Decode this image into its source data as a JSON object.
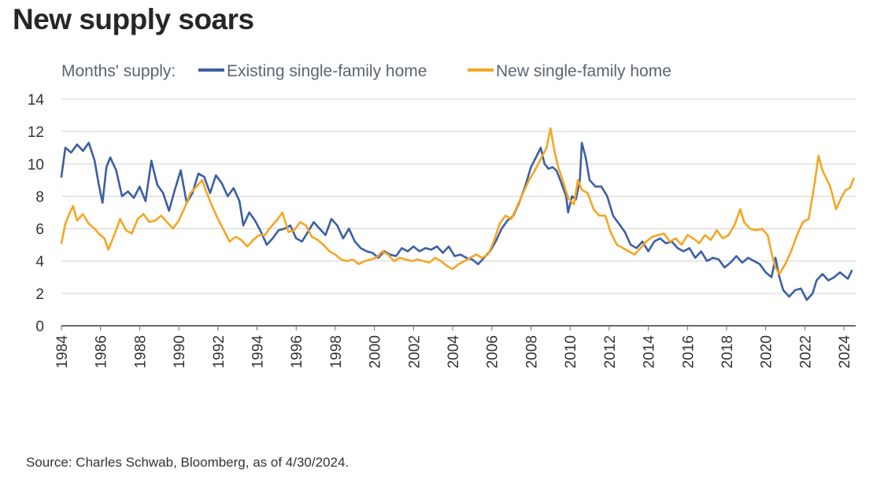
{
  "title": "New supply soars",
  "source": "Source: Charles Schwab, Bloomberg, as of 4/30/2024.",
  "colors": {
    "existing": "#3c5fa3",
    "new": "#f5a623",
    "grid": "#d0d0d0",
    "axis": "#6a6a6a"
  },
  "chart_data": {
    "type": "line",
    "title": "New supply soars",
    "legend_prefix": "Months' supply:",
    "legend_position": "top-left",
    "grid": true,
    "ylim": [
      0,
      14
    ],
    "yticks": [
      "0",
      "2",
      "4",
      "6",
      "8",
      "10",
      "12",
      "14"
    ],
    "xlim": [
      1984,
      2024.6
    ],
    "xticks": [
      "1984",
      "1986",
      "1988",
      "1990",
      "1992",
      "1994",
      "1996",
      "1998",
      "2000",
      "2002",
      "2004",
      "2006",
      "2008",
      "2010",
      "2012",
      "2014",
      "2016",
      "2018",
      "2020",
      "2022",
      "2024"
    ],
    "series": [
      {
        "name": "Existing single-family home",
        "color": "#3c5fa3",
        "points": [
          [
            1984,
            9.2
          ],
          [
            1984.2,
            11.0
          ],
          [
            1984.5,
            10.7
          ],
          [
            1984.8,
            11.2
          ],
          [
            1985.1,
            10.8
          ],
          [
            1985.4,
            11.3
          ],
          [
            1985.7,
            10.2
          ],
          [
            1985.9,
            8.8
          ],
          [
            1986.1,
            7.6
          ],
          [
            1986.3,
            9.8
          ],
          [
            1986.5,
            10.4
          ],
          [
            1986.8,
            9.6
          ],
          [
            1987.1,
            8.0
          ],
          [
            1987.4,
            8.3
          ],
          [
            1987.7,
            7.9
          ],
          [
            1988.0,
            8.6
          ],
          [
            1988.3,
            7.7
          ],
          [
            1988.6,
            10.2
          ],
          [
            1988.9,
            8.7
          ],
          [
            1989.2,
            8.2
          ],
          [
            1989.5,
            7.1
          ],
          [
            1989.8,
            8.4
          ],
          [
            1990.1,
            9.6
          ],
          [
            1990.4,
            7.6
          ],
          [
            1990.7,
            8.2
          ],
          [
            1991.0,
            9.4
          ],
          [
            1991.3,
            9.2
          ],
          [
            1991.6,
            8.2
          ],
          [
            1991.9,
            9.3
          ],
          [
            1992.2,
            8.8
          ],
          [
            1992.5,
            8.0
          ],
          [
            1992.8,
            8.5
          ],
          [
            1993.1,
            7.7
          ],
          [
            1993.3,
            6.2
          ],
          [
            1993.6,
            7.0
          ],
          [
            1993.9,
            6.5
          ],
          [
            1994.2,
            5.8
          ],
          [
            1994.5,
            5.0
          ],
          [
            1994.8,
            5.4
          ],
          [
            1995.1,
            5.9
          ],
          [
            1995.4,
            6.0
          ],
          [
            1995.7,
            6.2
          ],
          [
            1996.0,
            5.4
          ],
          [
            1996.3,
            5.2
          ],
          [
            1996.6,
            5.8
          ],
          [
            1996.9,
            6.4
          ],
          [
            1997.2,
            6.0
          ],
          [
            1997.5,
            5.6
          ],
          [
            1997.8,
            6.6
          ],
          [
            1998.1,
            6.2
          ],
          [
            1998.4,
            5.4
          ],
          [
            1998.7,
            6.0
          ],
          [
            1999.0,
            5.2
          ],
          [
            1999.3,
            4.8
          ],
          [
            1999.6,
            4.6
          ],
          [
            1999.9,
            4.5
          ],
          [
            2000.2,
            4.2
          ],
          [
            2000.5,
            4.6
          ],
          [
            2000.8,
            4.4
          ],
          [
            2001.1,
            4.3
          ],
          [
            2001.4,
            4.8
          ],
          [
            2001.7,
            4.6
          ],
          [
            2002.0,
            4.9
          ],
          [
            2002.3,
            4.6
          ],
          [
            2002.6,
            4.8
          ],
          [
            2002.9,
            4.7
          ],
          [
            2003.2,
            4.9
          ],
          [
            2003.5,
            4.5
          ],
          [
            2003.8,
            4.9
          ],
          [
            2004.1,
            4.3
          ],
          [
            2004.4,
            4.4
          ],
          [
            2004.7,
            4.2
          ],
          [
            2005.0,
            4.1
          ],
          [
            2005.3,
            3.8
          ],
          [
            2005.6,
            4.2
          ],
          [
            2005.9,
            4.6
          ],
          [
            2006.2,
            5.2
          ],
          [
            2006.5,
            6.0
          ],
          [
            2006.8,
            6.5
          ],
          [
            2007.1,
            6.8
          ],
          [
            2007.4,
            7.6
          ],
          [
            2007.7,
            8.6
          ],
          [
            2008.0,
            9.8
          ],
          [
            2008.3,
            10.5
          ],
          [
            2008.5,
            11.0
          ],
          [
            2008.7,
            10.0
          ],
          [
            2008.9,
            9.7
          ],
          [
            2009.1,
            9.8
          ],
          [
            2009.3,
            9.6
          ],
          [
            2009.5,
            9.0
          ],
          [
            2009.8,
            8.0
          ],
          [
            2009.9,
            7.0
          ],
          [
            2010.1,
            8.0
          ],
          [
            2010.3,
            7.8
          ],
          [
            2010.5,
            9.0
          ],
          [
            2010.6,
            11.3
          ],
          [
            2010.8,
            10.4
          ],
          [
            2011.0,
            9.0
          ],
          [
            2011.3,
            8.6
          ],
          [
            2011.6,
            8.6
          ],
          [
            2011.9,
            8.0
          ],
          [
            2012.2,
            6.8
          ],
          [
            2012.5,
            6.3
          ],
          [
            2012.8,
            5.8
          ],
          [
            2013.1,
            5.0
          ],
          [
            2013.4,
            4.8
          ],
          [
            2013.7,
            5.2
          ],
          [
            2014.0,
            4.6
          ],
          [
            2014.3,
            5.2
          ],
          [
            2014.6,
            5.4
          ],
          [
            2014.9,
            5.1
          ],
          [
            2015.2,
            5.2
          ],
          [
            2015.5,
            4.8
          ],
          [
            2015.8,
            4.6
          ],
          [
            2016.1,
            4.8
          ],
          [
            2016.4,
            4.2
          ],
          [
            2016.7,
            4.6
          ],
          [
            2017.0,
            4.0
          ],
          [
            2017.3,
            4.2
          ],
          [
            2017.6,
            4.1
          ],
          [
            2017.9,
            3.6
          ],
          [
            2018.2,
            3.9
          ],
          [
            2018.5,
            4.3
          ],
          [
            2018.8,
            3.9
          ],
          [
            2019.1,
            4.2
          ],
          [
            2019.4,
            4.0
          ],
          [
            2019.7,
            3.8
          ],
          [
            2020.0,
            3.3
          ],
          [
            2020.3,
            3.0
          ],
          [
            2020.5,
            4.2
          ],
          [
            2020.7,
            3.0
          ],
          [
            2020.9,
            2.2
          ],
          [
            2021.2,
            1.8
          ],
          [
            2021.5,
            2.2
          ],
          [
            2021.8,
            2.3
          ],
          [
            2022.1,
            1.6
          ],
          [
            2022.4,
            2.0
          ],
          [
            2022.6,
            2.8
          ],
          [
            2022.9,
            3.2
          ],
          [
            2023.2,
            2.8
          ],
          [
            2023.5,
            3.0
          ],
          [
            2023.8,
            3.3
          ],
          [
            2024.0,
            3.1
          ],
          [
            2024.2,
            2.9
          ],
          [
            2024.4,
            3.4
          ]
        ]
      },
      {
        "name": "New single-family home",
        "color": "#f5a623",
        "points": [
          [
            1984,
            5.1
          ],
          [
            1984.2,
            6.3
          ],
          [
            1984.4,
            6.9
          ],
          [
            1984.6,
            7.4
          ],
          [
            1984.8,
            6.5
          ],
          [
            1985.1,
            6.9
          ],
          [
            1985.4,
            6.3
          ],
          [
            1985.7,
            6.0
          ],
          [
            1985.9,
            5.7
          ],
          [
            1986.2,
            5.4
          ],
          [
            1986.4,
            4.7
          ],
          [
            1986.7,
            5.6
          ],
          [
            1987.0,
            6.6
          ],
          [
            1987.3,
            5.9
          ],
          [
            1987.6,
            5.7
          ],
          [
            1987.9,
            6.6
          ],
          [
            1988.2,
            6.9
          ],
          [
            1988.5,
            6.4
          ],
          [
            1988.8,
            6.5
          ],
          [
            1989.1,
            6.8
          ],
          [
            1989.4,
            6.4
          ],
          [
            1989.7,
            6.0
          ],
          [
            1990.0,
            6.5
          ],
          [
            1990.3,
            7.3
          ],
          [
            1990.6,
            8.2
          ],
          [
            1990.9,
            8.6
          ],
          [
            1991.2,
            9.0
          ],
          [
            1991.4,
            8.3
          ],
          [
            1991.7,
            7.4
          ],
          [
            1992.0,
            6.6
          ],
          [
            1992.3,
            5.9
          ],
          [
            1992.6,
            5.2
          ],
          [
            1992.9,
            5.5
          ],
          [
            1993.2,
            5.3
          ],
          [
            1993.5,
            4.9
          ],
          [
            1993.8,
            5.3
          ],
          [
            1994.1,
            5.6
          ],
          [
            1994.4,
            5.6
          ],
          [
            1994.7,
            6.1
          ],
          [
            1995.0,
            6.5
          ],
          [
            1995.3,
            7.0
          ],
          [
            1995.6,
            5.8
          ],
          [
            1995.9,
            5.9
          ],
          [
            1996.2,
            6.4
          ],
          [
            1996.5,
            6.2
          ],
          [
            1996.8,
            5.5
          ],
          [
            1997.1,
            5.3
          ],
          [
            1997.4,
            5.0
          ],
          [
            1997.7,
            4.6
          ],
          [
            1998.0,
            4.4
          ],
          [
            1998.3,
            4.1
          ],
          [
            1998.6,
            4.0
          ],
          [
            1998.9,
            4.1
          ],
          [
            1999.2,
            3.8
          ],
          [
            1999.5,
            4.0
          ],
          [
            1999.8,
            4.1
          ],
          [
            2000.1,
            4.2
          ],
          [
            2000.4,
            4.6
          ],
          [
            2000.7,
            4.4
          ],
          [
            2001.0,
            4.0
          ],
          [
            2001.3,
            4.2
          ],
          [
            2001.6,
            4.1
          ],
          [
            2001.9,
            4.0
          ],
          [
            2002.2,
            4.1
          ],
          [
            2002.5,
            4.0
          ],
          [
            2002.8,
            3.9
          ],
          [
            2003.1,
            4.2
          ],
          [
            2003.4,
            4.0
          ],
          [
            2003.7,
            3.7
          ],
          [
            2004.0,
            3.5
          ],
          [
            2004.3,
            3.8
          ],
          [
            2004.6,
            4.0
          ],
          [
            2004.9,
            4.2
          ],
          [
            2005.2,
            4.4
          ],
          [
            2005.5,
            4.2
          ],
          [
            2005.8,
            4.4
          ],
          [
            2006.1,
            5.2
          ],
          [
            2006.4,
            6.3
          ],
          [
            2006.7,
            6.8
          ],
          [
            2007.0,
            6.6
          ],
          [
            2007.3,
            7.4
          ],
          [
            2007.6,
            8.2
          ],
          [
            2007.9,
            9.0
          ],
          [
            2008.2,
            9.6
          ],
          [
            2008.5,
            10.3
          ],
          [
            2008.8,
            11.0
          ],
          [
            2009.0,
            12.2
          ],
          [
            2009.2,
            10.8
          ],
          [
            2009.4,
            9.8
          ],
          [
            2009.7,
            8.7
          ],
          [
            2009.9,
            7.9
          ],
          [
            2010.2,
            7.5
          ],
          [
            2010.4,
            9.0
          ],
          [
            2010.6,
            8.4
          ],
          [
            2010.9,
            8.2
          ],
          [
            2011.2,
            7.2
          ],
          [
            2011.5,
            6.8
          ],
          [
            2011.8,
            6.8
          ],
          [
            2012.1,
            5.7
          ],
          [
            2012.4,
            5.0
          ],
          [
            2012.7,
            4.8
          ],
          [
            2013.0,
            4.6
          ],
          [
            2013.3,
            4.4
          ],
          [
            2013.6,
            4.8
          ],
          [
            2013.9,
            5.2
          ],
          [
            2014.2,
            5.5
          ],
          [
            2014.5,
            5.6
          ],
          [
            2014.8,
            5.7
          ],
          [
            2015.1,
            5.2
          ],
          [
            2015.4,
            5.4
          ],
          [
            2015.7,
            5.0
          ],
          [
            2016.0,
            5.6
          ],
          [
            2016.3,
            5.4
          ],
          [
            2016.6,
            5.1
          ],
          [
            2016.9,
            5.6
          ],
          [
            2017.2,
            5.3
          ],
          [
            2017.5,
            5.9
          ],
          [
            2017.8,
            5.4
          ],
          [
            2018.1,
            5.6
          ],
          [
            2018.4,
            6.2
          ],
          [
            2018.7,
            7.2
          ],
          [
            2018.9,
            6.4
          ],
          [
            2019.2,
            6.0
          ],
          [
            2019.5,
            5.9
          ],
          [
            2019.8,
            6.0
          ],
          [
            2020.1,
            5.6
          ],
          [
            2020.3,
            4.5
          ],
          [
            2020.5,
            3.6
          ],
          [
            2020.7,
            3.2
          ],
          [
            2021.0,
            3.8
          ],
          [
            2021.3,
            4.6
          ],
          [
            2021.6,
            5.6
          ],
          [
            2021.9,
            6.4
          ],
          [
            2022.2,
            6.6
          ],
          [
            2022.5,
            8.8
          ],
          [
            2022.7,
            10.5
          ],
          [
            2022.9,
            9.6
          ],
          [
            2023.1,
            9.1
          ],
          [
            2023.3,
            8.6
          ],
          [
            2023.6,
            7.2
          ],
          [
            2023.9,
            8.0
          ],
          [
            2024.1,
            8.4
          ],
          [
            2024.3,
            8.5
          ],
          [
            2024.5,
            9.1
          ]
        ]
      }
    ]
  }
}
